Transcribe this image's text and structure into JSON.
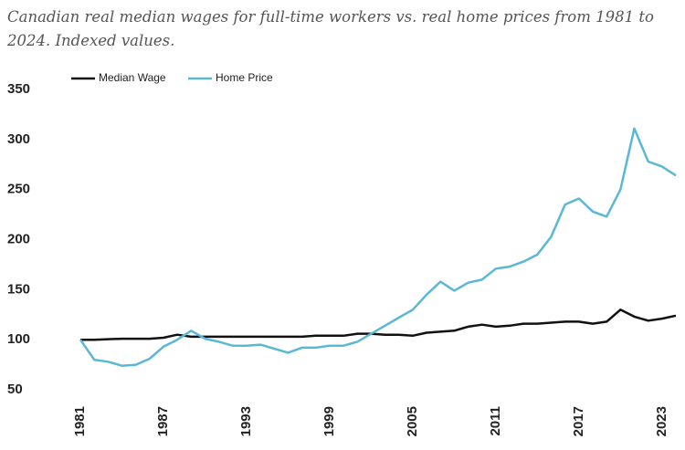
{
  "chart_data": {
    "type": "line",
    "title": "Canadian real median wages for full-time workers vs. real home prices from 1981 to 2024. Indexed values.",
    "x": [
      1981,
      1982,
      1983,
      1984,
      1985,
      1986,
      1987,
      1988,
      1989,
      1990,
      1991,
      1992,
      1993,
      1994,
      1995,
      1996,
      1997,
      1998,
      1999,
      2000,
      2001,
      2002,
      2003,
      2004,
      2005,
      2006,
      2007,
      2008,
      2009,
      2010,
      2011,
      2012,
      2013,
      2014,
      2015,
      2016,
      2017,
      2018,
      2019,
      2020,
      2021,
      2022,
      2023,
      2024
    ],
    "series": [
      {
        "name": "Median Wage",
        "color": "#111111",
        "values": [
          100,
          100,
          100.5,
          101,
          101,
          101,
          102,
          105,
          103,
          103,
          103,
          103,
          103,
          103,
          103,
          103,
          103,
          104,
          104,
          104,
          106,
          106,
          105,
          105,
          104,
          107,
          108,
          109,
          113,
          115,
          113,
          114,
          116,
          116,
          117,
          118,
          118,
          116,
          118,
          130,
          123,
          119,
          121,
          124
        ]
      },
      {
        "name": "Home Price",
        "color": "#5bb8d4",
        "values": [
          100,
          80,
          78,
          74,
          75,
          81,
          93,
          100,
          109,
          101,
          98,
          94,
          94,
          95,
          91,
          87,
          92,
          92,
          94,
          94,
          98,
          106,
          114,
          122,
          130,
          145,
          158,
          149,
          157,
          160,
          171,
          173,
          178,
          185,
          203,
          235,
          241,
          228,
          223,
          250,
          311,
          278,
          273,
          264
        ]
      }
    ],
    "xlim": [
      1981,
      2024
    ],
    "xticks": [
      1981,
      1987,
      1993,
      1999,
      2005,
      2011,
      2017,
      2023
    ],
    "ylim": [
      50,
      350
    ],
    "yticks": [
      50,
      100,
      150,
      200,
      250,
      300,
      350
    ],
    "grid": false,
    "legend": "top-left"
  }
}
